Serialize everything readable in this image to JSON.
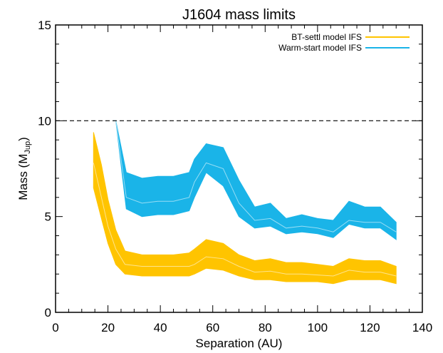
{
  "chart_data": {
    "type": "area",
    "title": "J1604 mass limits",
    "xlabel": "Separation (AU)",
    "ylabel_main": "Mass (M",
    "ylabel_sub": "Jup",
    "ylabel_close": ")",
    "xlim": [
      0,
      140
    ],
    "ylim": [
      0,
      15
    ],
    "xticks": [
      "0",
      "20",
      "40",
      "60",
      "80",
      "100",
      "120",
      "140"
    ],
    "yticks": [
      "0",
      "5",
      "10",
      "15"
    ],
    "reference_line": {
      "y": 10,
      "style": "dashed"
    },
    "legend_position": "top-right",
    "series": [
      {
        "name": "BT-settl model IFS",
        "color": "#FFC400",
        "x": [
          14.5,
          17.5,
          20,
          23,
          26.5,
          33,
          39,
          45,
          51,
          53,
          57.5,
          64,
          70,
          76,
          82,
          88,
          94,
          100,
          106,
          112,
          118,
          124,
          130
        ],
        "upper": [
          9.4,
          7.7,
          5.9,
          4.3,
          3.2,
          3.0,
          3.0,
          3.0,
          3.1,
          3.3,
          3.8,
          3.6,
          3.0,
          2.7,
          2.8,
          2.6,
          2.6,
          2.5,
          2.4,
          2.8,
          2.7,
          2.7,
          2.4
        ],
        "center": [
          7.8,
          6.0,
          4.5,
          3.3,
          2.5,
          2.4,
          2.4,
          2.4,
          2.4,
          2.5,
          2.9,
          2.8,
          2.4,
          2.1,
          2.15,
          2.0,
          2.0,
          1.95,
          1.9,
          2.2,
          2.1,
          2.1,
          1.9
        ],
        "lower": [
          6.5,
          4.9,
          3.6,
          2.5,
          2.0,
          1.9,
          1.9,
          1.9,
          1.9,
          2.0,
          2.3,
          2.2,
          1.9,
          1.7,
          1.7,
          1.6,
          1.6,
          1.6,
          1.5,
          1.7,
          1.7,
          1.7,
          1.5
        ]
      },
      {
        "name": "Warm-start model IFS",
        "color": "#1AB4E8",
        "x": [
          22,
          23,
          27,
          33,
          39,
          45,
          51,
          53,
          57.5,
          64,
          70,
          76,
          82,
          88,
          94,
          100,
          106,
          112,
          118,
          124,
          130
        ],
        "upper": [
          10.0,
          10.0,
          7.3,
          7.0,
          7.1,
          7.1,
          7.3,
          8.0,
          8.8,
          8.6,
          6.9,
          5.5,
          5.7,
          4.9,
          5.1,
          4.9,
          4.8,
          5.8,
          5.5,
          5.5,
          4.7
        ],
        "center": [
          10.0,
          10.0,
          6.0,
          5.7,
          5.8,
          5.8,
          6.0,
          6.8,
          7.8,
          7.5,
          5.7,
          4.8,
          4.9,
          4.4,
          4.5,
          4.4,
          4.2,
          4.8,
          4.7,
          4.7,
          4.2
        ],
        "lower": [
          10.0,
          10.0,
          5.4,
          5.0,
          5.1,
          5.1,
          5.3,
          6.0,
          7.3,
          6.6,
          5.0,
          4.4,
          4.5,
          4.1,
          4.2,
          4.1,
          3.9,
          4.6,
          4.4,
          4.4,
          3.8
        ]
      }
    ]
  }
}
